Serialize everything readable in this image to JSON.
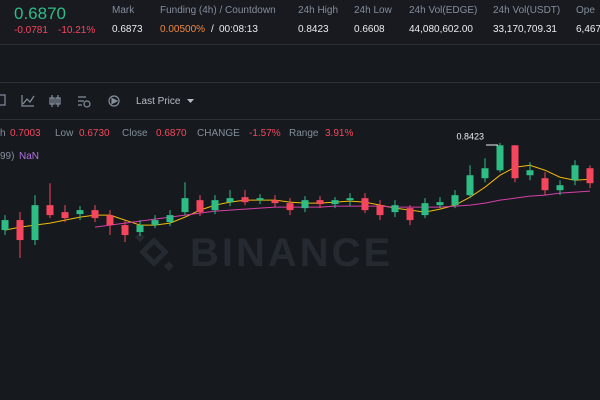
{
  "ticker": {
    "price": "0.6870",
    "change": "-0.0781",
    "change_pct": "-10.21%",
    "stats": [
      {
        "label": "Mark",
        "value": "0.6873"
      },
      {
        "label": "24h High",
        "value": "0.8423"
      },
      {
        "label": "24h Low",
        "value": "0.6608"
      },
      {
        "label": "24h Vol(EDGE)",
        "value": "44,080,602.00"
      },
      {
        "label": "24h Vol(USDT)",
        "value": "33,170,709.31"
      },
      {
        "label": "Ope",
        "value": "6,467"
      }
    ],
    "funding": {
      "label": "Funding (4h) / Countdown",
      "rate": "0.00500%",
      "sep": "/",
      "countdown": "00:08:13"
    }
  },
  "toolbar": {
    "price_type": "Last Price"
  },
  "ohlc": {
    "high_label": "h",
    "high": "0.7003",
    "low_label": "Low",
    "low": "0.6730",
    "close_label": "Close",
    "close": "0.6870",
    "change_label": "CHANGE",
    "change": "-1.57%",
    "range_label": "Range",
    "range": "3.91%"
  },
  "ma_legend": {
    "label": "99)",
    "value": "NaN"
  },
  "watermark": "BINANCE",
  "chart": {
    "type": "candlestick",
    "max_label": "0.8423",
    "candles": [
      {
        "open": 0.755,
        "high": 0.77,
        "low": 0.75,
        "close": 0.765
      },
      {
        "open": 0.765,
        "high": 0.773,
        "low": 0.727,
        "close": 0.745
      },
      {
        "open": 0.745,
        "high": 0.79,
        "low": 0.74,
        "close": 0.78
      },
      {
        "open": 0.78,
        "high": 0.802,
        "low": 0.767,
        "close": 0.77
      },
      {
        "open": 0.773,
        "high": 0.78,
        "low": 0.763,
        "close": 0.767
      },
      {
        "open": 0.771,
        "high": 0.779,
        "low": 0.765,
        "close": 0.775
      },
      {
        "open": 0.775,
        "high": 0.78,
        "low": 0.763,
        "close": 0.767
      },
      {
        "open": 0.77,
        "high": 0.775,
        "low": 0.75,
        "close": 0.76
      },
      {
        "open": 0.76,
        "high": 0.765,
        "low": 0.743,
        "close": 0.75
      },
      {
        "open": 0.753,
        "high": 0.765,
        "low": 0.749,
        "close": 0.76
      },
      {
        "open": 0.76,
        "high": 0.77,
        "low": 0.757,
        "close": 0.765
      },
      {
        "open": 0.763,
        "high": 0.775,
        "low": 0.759,
        "close": 0.77
      },
      {
        "open": 0.773,
        "high": 0.803,
        "low": 0.77,
        "close": 0.787
      },
      {
        "open": 0.785,
        "high": 0.79,
        "low": 0.769,
        "close": 0.773
      },
      {
        "open": 0.775,
        "high": 0.79,
        "low": 0.771,
        "close": 0.785
      },
      {
        "open": 0.783,
        "high": 0.795,
        "low": 0.779,
        "close": 0.787
      },
      {
        "open": 0.788,
        "high": 0.795,
        "low": 0.78,
        "close": 0.783
      },
      {
        "open": 0.785,
        "high": 0.791,
        "low": 0.781,
        "close": 0.787
      },
      {
        "open": 0.785,
        "high": 0.79,
        "low": 0.778,
        "close": 0.782
      },
      {
        "open": 0.782,
        "high": 0.787,
        "low": 0.77,
        "close": 0.775
      },
      {
        "open": 0.777,
        "high": 0.789,
        "low": 0.773,
        "close": 0.785
      },
      {
        "open": 0.785,
        "high": 0.789,
        "low": 0.777,
        "close": 0.781
      },
      {
        "open": 0.781,
        "high": 0.788,
        "low": 0.777,
        "close": 0.785
      },
      {
        "open": 0.785,
        "high": 0.792,
        "low": 0.779,
        "close": 0.787
      },
      {
        "open": 0.787,
        "high": 0.792,
        "low": 0.772,
        "close": 0.775
      },
      {
        "open": 0.78,
        "high": 0.785,
        "low": 0.765,
        "close": 0.77
      },
      {
        "open": 0.773,
        "high": 0.785,
        "low": 0.768,
        "close": 0.78
      },
      {
        "open": 0.777,
        "high": 0.78,
        "low": 0.76,
        "close": 0.765
      },
      {
        "open": 0.77,
        "high": 0.787,
        "low": 0.767,
        "close": 0.782
      },
      {
        "open": 0.78,
        "high": 0.788,
        "low": 0.777,
        "close": 0.783
      },
      {
        "open": 0.78,
        "high": 0.795,
        "low": 0.777,
        "close": 0.79
      },
      {
        "open": 0.79,
        "high": 0.82,
        "low": 0.787,
        "close": 0.81
      },
      {
        "open": 0.807,
        "high": 0.827,
        "low": 0.803,
        "close": 0.817
      },
      {
        "open": 0.815,
        "high": 0.8423,
        "low": 0.813,
        "close": 0.84
      },
      {
        "open": 0.84,
        "high": 0.84,
        "low": 0.803,
        "close": 0.807
      },
      {
        "open": 0.81,
        "high": 0.823,
        "low": 0.805,
        "close": 0.815
      },
      {
        "open": 0.807,
        "high": 0.813,
        "low": 0.79,
        "close": 0.795
      },
      {
        "open": 0.795,
        "high": 0.805,
        "low": 0.79,
        "close": 0.8
      },
      {
        "open": 0.805,
        "high": 0.825,
        "low": 0.8,
        "close": 0.82
      },
      {
        "open": 0.817,
        "high": 0.82,
        "low": 0.797,
        "close": 0.802
      }
    ],
    "series": [
      {
        "color": "#f0b90b",
        "values": [
          0.755,
          0.758,
          0.76,
          0.762,
          0.765,
          0.768,
          0.77,
          0.77,
          0.765,
          0.76,
          0.76,
          0.762,
          0.768,
          0.775,
          0.78,
          0.783,
          0.785,
          0.785,
          0.785,
          0.783,
          0.782,
          0.782,
          0.783,
          0.784,
          0.783,
          0.78,
          0.777,
          0.775,
          0.773,
          0.776,
          0.78,
          0.788,
          0.798,
          0.81,
          0.818,
          0.82,
          0.815,
          0.808,
          0.805,
          0.806
        ]
      },
      {
        "color": "#d63fa8",
        "values": [
          null,
          null,
          null,
          null,
          null,
          null,
          0.758,
          0.76,
          0.762,
          0.764,
          0.766,
          0.768,
          0.77,
          0.772,
          0.774,
          0.775,
          0.776,
          0.777,
          0.778,
          0.778,
          0.778,
          0.778,
          0.779,
          0.779,
          0.779,
          0.779,
          0.778,
          0.778,
          0.778,
          0.778,
          0.779,
          0.78,
          0.782,
          0.785,
          0.787,
          0.789,
          0.79,
          0.792,
          0.793,
          0.794
        ]
      }
    ],
    "up_color": "#2ebd85",
    "down_color": "#f6465d"
  }
}
